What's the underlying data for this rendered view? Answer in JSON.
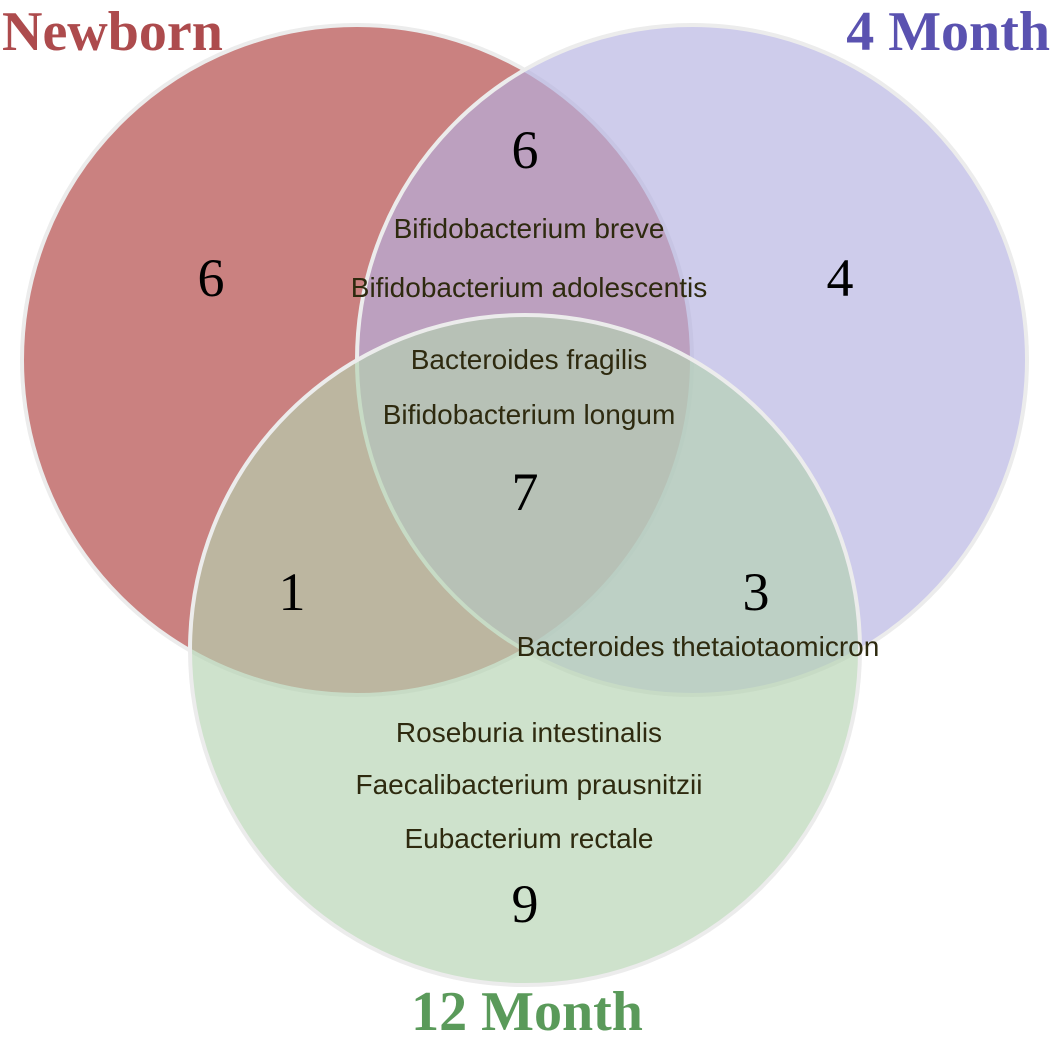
{
  "sets": [
    {
      "id": "newborn",
      "label": "Newborn",
      "color": "#b85755",
      "label_color": "#ad4b4d"
    },
    {
      "id": "month4",
      "label": "4 Month",
      "color": "#b3b1e0",
      "label_color": "#5a52b0"
    },
    {
      "id": "month12",
      "label": "12 Month",
      "color": "#b4d3b0",
      "label_color": "#5a9a5a"
    }
  ],
  "regions": {
    "newborn_only": {
      "count": "6",
      "species": []
    },
    "month4_only": {
      "count": "4",
      "species": []
    },
    "newborn_month4": {
      "count": "6",
      "species": [
        "Bifidobacterium breve",
        "Bifidobacterium adolescentis"
      ]
    },
    "all_three": {
      "count": "7",
      "species": [
        "Bacteroides fragilis",
        "Bifidobacterium longum"
      ]
    },
    "newborn_month12": {
      "count": "1",
      "species": []
    },
    "month4_month12": {
      "count": "3",
      "species": [
        "Bacteroides thetaiotaomicron"
      ]
    },
    "month12_only": {
      "count": "9",
      "species": [
        "Roseburia intestinalis",
        "Faecalibacterium prausnitzii",
        "Eubacterium rectale"
      ]
    }
  }
}
